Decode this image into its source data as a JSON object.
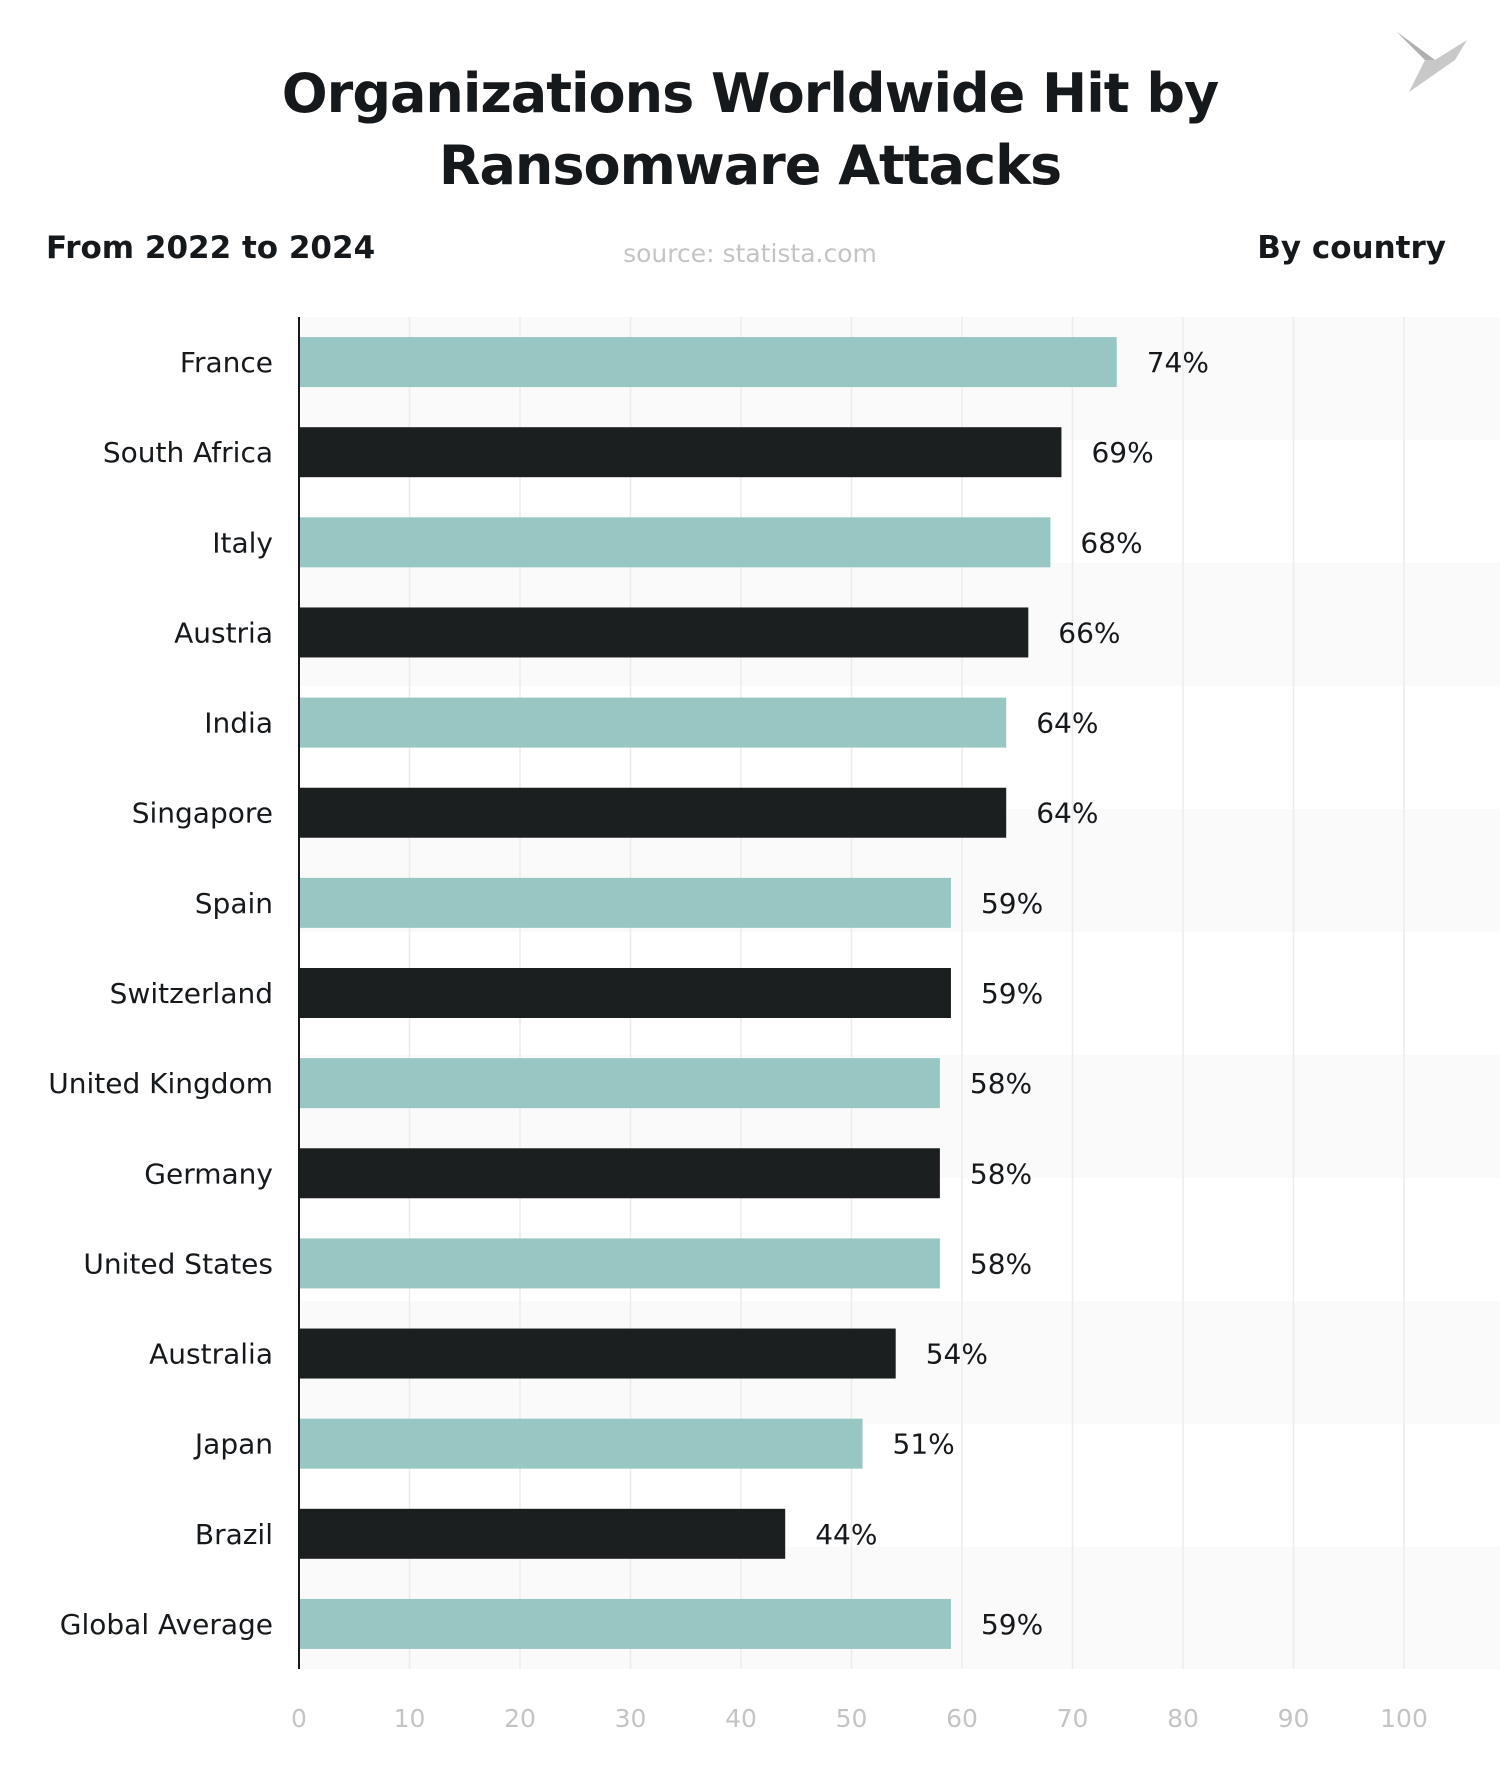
{
  "title_line1": "Organizations Worldwide Hit by",
  "title_line2": "Ransomware Attacks",
  "subtitle_left": "From 2022 to 2024",
  "subtitle_right": "By country",
  "source": "source: statista.com",
  "colors": {
    "teal": "#97c6c3",
    "dark": "#1c1f20",
    "text": "#16191c",
    "tick": "#c4c4c4",
    "grid": "#ececec",
    "stripe": "#fafafa"
  },
  "chart_data": {
    "type": "bar",
    "orientation": "horizontal",
    "title": "Organizations Worldwide Hit by Ransomware Attacks",
    "categories": [
      "France",
      "South Africa",
      "Italy",
      "Austria",
      "India",
      "Singapore",
      "Spain",
      "Switzerland",
      "United Kingdom",
      "Germany",
      "United States",
      "Australia",
      "Japan",
      "Brazil",
      "Global Average"
    ],
    "values": [
      74,
      69,
      68,
      66,
      64,
      64,
      59,
      59,
      58,
      58,
      58,
      54,
      51,
      44,
      59
    ],
    "value_labels": [
      "74%",
      "69%",
      "68%",
      "66%",
      "64%",
      "64%",
      "59%",
      "59%",
      "58%",
      "58%",
      "58%",
      "54%",
      "51%",
      "44%",
      "59%"
    ],
    "bar_colors": [
      "teal",
      "dark",
      "teal",
      "dark",
      "teal",
      "dark",
      "teal",
      "dark",
      "teal",
      "dark",
      "teal",
      "dark",
      "teal",
      "dark",
      "teal"
    ],
    "xlim": [
      0,
      109
    ],
    "x_ticks": [
      "0",
      "10",
      "20",
      "30",
      "40",
      "50",
      "60",
      "70",
      "80",
      "90",
      "100"
    ],
    "grid": true,
    "legend": "none"
  }
}
